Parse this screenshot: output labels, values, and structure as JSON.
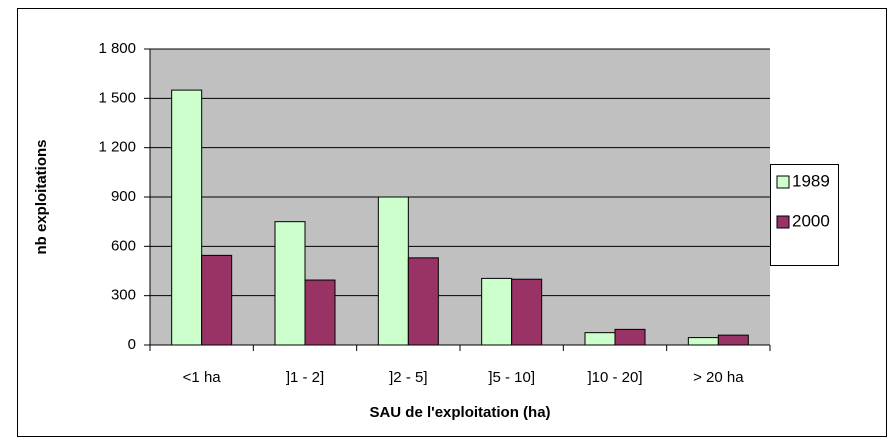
{
  "chart_data": {
    "type": "bar",
    "xlabel": "SAU de l'exploitation (ha)",
    "ylabel": "nb exploitations",
    "categories": [
      "<1 ha",
      "]1 - 2]",
      "]2 - 5]",
      "]5 - 10]",
      "]10 - 20]",
      "> 20 ha"
    ],
    "series": [
      {
        "name": "1989",
        "color": "#ccffcc",
        "values": [
          1550,
          750,
          900,
          405,
          75,
          45
        ]
      },
      {
        "name": "2000",
        "color": "#993366",
        "values": [
          545,
          395,
          530,
          400,
          95,
          60
        ]
      }
    ],
    "ylim": [
      0,
      1800
    ],
    "yticks": [
      0,
      300,
      600,
      900,
      {
        "value": 1200,
        "label": "1 200"
      },
      {
        "value": 1500,
        "label": "1 500"
      },
      {
        "value": 1800,
        "label": "1 800"
      }
    ],
    "grid": true,
    "legend": "right"
  }
}
